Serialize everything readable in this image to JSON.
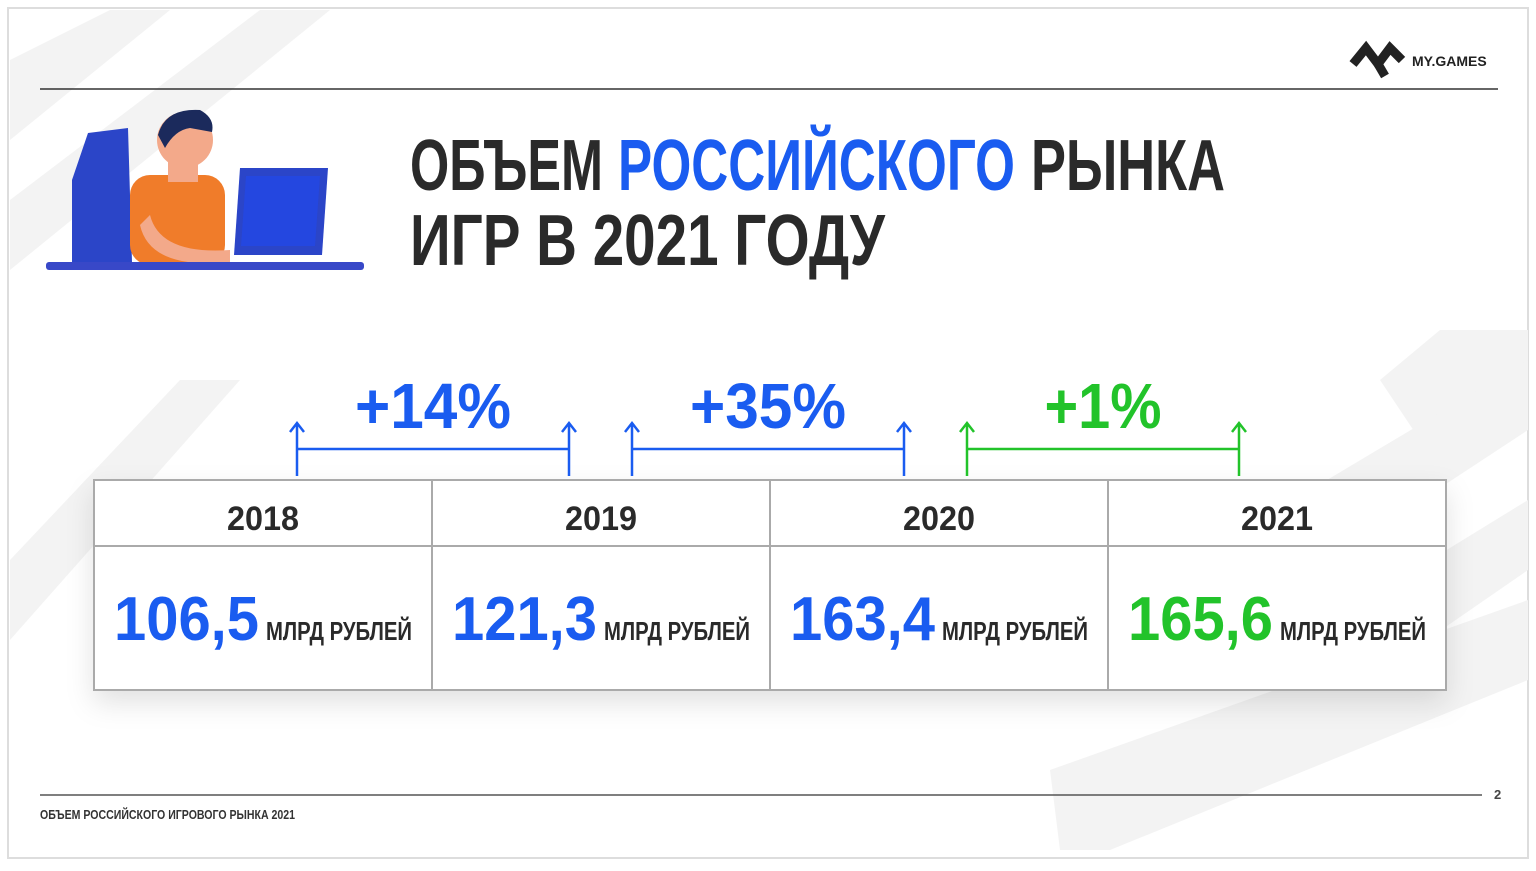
{
  "header": {
    "logo": "MY.GAMES"
  },
  "title": {
    "line1": [
      "ОБЪЕМ",
      "РОССИЙСКОГО",
      "РЫНКА"
    ],
    "line1_colors": [
      "#2a2a2a",
      "#1a5cf0",
      "#2a2a2a"
    ],
    "line2": "ИГР В 2021 ГОДУ"
  },
  "growth": [
    {
      "label": "+14%",
      "color": "#1a5cf0"
    },
    {
      "label": "+35%",
      "color": "#1a5cf0"
    },
    {
      "label": "+1%",
      "color": "#22c32a"
    }
  ],
  "table": {
    "columns": [
      {
        "year": "2018",
        "value": "106,5",
        "unit": "МЛРД РУБЛЕЙ",
        "color": "#1a5cf0"
      },
      {
        "year": "2019",
        "value": "121,3",
        "unit": "МЛРД РУБЛЕЙ",
        "color": "#1a5cf0"
      },
      {
        "year": "2020",
        "value": "163,4",
        "unit": "МЛРД РУБЛЕЙ",
        "color": "#1a5cf0"
      },
      {
        "year": "2021",
        "value": "165,6",
        "unit": "МЛРД РУБЛЕЙ",
        "color": "#22c32a"
      }
    ]
  },
  "footer": {
    "text": "ОБЪЕМ РОССИЙСКОГО ИГРОВОГО РЫНКА 2021",
    "page": "2"
  }
}
